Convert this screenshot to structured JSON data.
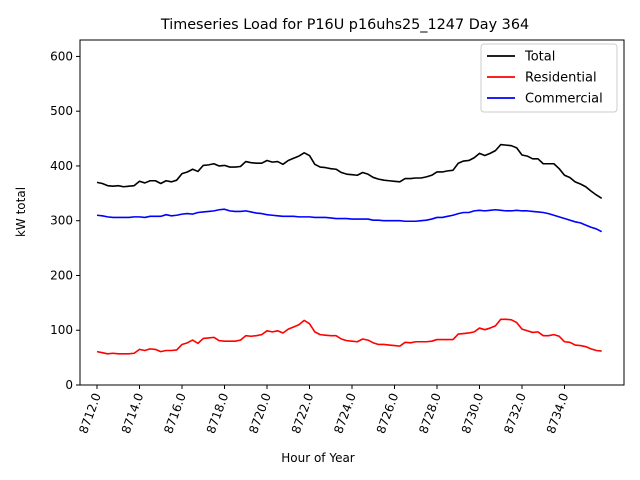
{
  "chart_data": {
    "type": "line",
    "title": "Timeseries Load for P16U p16uhs25_1247  Day 364",
    "xlabel": "Hour of Year",
    "ylabel": "kW total",
    "xlim": [
      8711.2,
      8736.8
    ],
    "ylim": [
      0,
      630
    ],
    "x_ticks": [
      8712,
      8714,
      8716,
      8718,
      8720,
      8722,
      8724,
      8726,
      8728,
      8730,
      8732,
      8734
    ],
    "x_tick_labels": [
      "8712.0",
      "8714.0",
      "8716.0",
      "8718.0",
      "8720.0",
      "8722.0",
      "8724.0",
      "8726.0",
      "8728.0",
      "8730.0",
      "8732.0",
      "8734.0"
    ],
    "y_ticks": [
      0,
      100,
      200,
      300,
      400,
      500,
      600
    ],
    "y_tick_labels": [
      "0",
      "100",
      "200",
      "300",
      "400",
      "500",
      "600"
    ],
    "grid": false,
    "legend_position": "top-right",
    "x": [
      8712.0,
      8712.25,
      8712.5,
      8712.75,
      8713.0,
      8713.25,
      8713.5,
      8713.75,
      8714.0,
      8714.25,
      8714.5,
      8714.75,
      8715.0,
      8715.25,
      8715.5,
      8715.75,
      8716.0,
      8716.25,
      8716.5,
      8716.75,
      8717.0,
      8717.25,
      8717.5,
      8717.75,
      8718.0,
      8718.25,
      8718.5,
      8718.75,
      8719.0,
      8719.25,
      8719.5,
      8719.75,
      8720.0,
      8720.25,
      8720.5,
      8720.75,
      8721.0,
      8721.25,
      8721.5,
      8721.75,
      8722.0,
      8722.25,
      8722.5,
      8722.75,
      8723.0,
      8723.25,
      8723.5,
      8723.75,
      8724.0,
      8724.25,
      8724.5,
      8724.75,
      8725.0,
      8725.25,
      8725.5,
      8725.75,
      8726.0,
      8726.25,
      8726.5,
      8726.75,
      8727.0,
      8727.25,
      8727.5,
      8727.75,
      8728.0,
      8728.25,
      8728.5,
      8728.75,
      8729.0,
      8729.25,
      8729.5,
      8729.75,
      8730.0,
      8730.25,
      8730.5,
      8730.75,
      8731.0,
      8731.25,
      8731.5,
      8731.75,
      8732.0,
      8732.25,
      8732.5,
      8732.75,
      8733.0,
      8733.25,
      8733.5,
      8733.75,
      8734.0,
      8734.25,
      8734.5,
      8734.75,
      8735.0,
      8735.25,
      8735.5,
      8735.75
    ],
    "series": [
      {
        "name": "Total",
        "color": "#000000",
        "values": [
          370,
          368,
          364,
          363,
          364,
          362,
          363,
          364,
          372,
          369,
          373,
          373,
          368,
          373,
          371,
          374,
          386,
          389,
          394,
          390,
          401,
          402,
          404,
          400,
          401,
          398,
          398,
          399,
          408,
          406,
          405,
          405,
          410,
          407,
          408,
          403,
          410,
          414,
          418,
          424,
          419,
          403,
          398,
          397,
          395,
          394,
          388,
          385,
          384,
          383,
          388,
          385,
          379,
          376,
          374,
          373,
          372,
          371,
          377,
          377,
          378,
          378,
          380,
          383,
          389,
          389,
          391,
          392,
          405,
          409,
          410,
          415,
          423,
          419,
          423,
          428,
          439,
          438,
          437,
          433,
          420,
          418,
          413,
          413,
          404,
          404,
          404,
          395,
          383,
          379,
          371,
          367,
          362,
          354,
          347,
          341
        ]
      },
      {
        "name": "Residential",
        "color": "#ff0000",
        "values": [
          61,
          59,
          57,
          58,
          57,
          57,
          57,
          58,
          65,
          63,
          66,
          65,
          61,
          63,
          63,
          64,
          74,
          77,
          82,
          76,
          85,
          86,
          87,
          81,
          80,
          80,
          80,
          82,
          90,
          89,
          90,
          92,
          99,
          97,
          99,
          95,
          102,
          106,
          110,
          118,
          112,
          97,
          92,
          91,
          90,
          90,
          84,
          81,
          80,
          79,
          84,
          82,
          77,
          74,
          74,
          73,
          72,
          71,
          78,
          77,
          79,
          79,
          79,
          80,
          83,
          83,
          83,
          83,
          93,
          94,
          95,
          97,
          104,
          101,
          104,
          108,
          120,
          120,
          119,
          114,
          102,
          99,
          96,
          97,
          90,
          90,
          92,
          89,
          79,
          78,
          73,
          72,
          70,
          66,
          63,
          62
        ]
      },
      {
        "name": "Commercial",
        "color": "#0000ff",
        "values": [
          310,
          309,
          307,
          306,
          306,
          306,
          306,
          307,
          307,
          306,
          308,
          308,
          308,
          311,
          309,
          310,
          312,
          313,
          312,
          315,
          316,
          317,
          318,
          320,
          321,
          318,
          317,
          317,
          318,
          316,
          314,
          313,
          311,
          310,
          309,
          308,
          308,
          308,
          307,
          307,
          307,
          306,
          306,
          306,
          305,
          304,
          304,
          304,
          303,
          303,
          303,
          303,
          301,
          301,
          300,
          300,
          300,
          300,
          299,
          299,
          299,
          300,
          301,
          303,
          306,
          306,
          308,
          310,
          313,
          315,
          315,
          318,
          319,
          318,
          319,
          320,
          319,
          318,
          318,
          319,
          318,
          318,
          317,
          316,
          315,
          313,
          310,
          307,
          304,
          301,
          298,
          296,
          292,
          288,
          285,
          280
        ]
      }
    ]
  }
}
